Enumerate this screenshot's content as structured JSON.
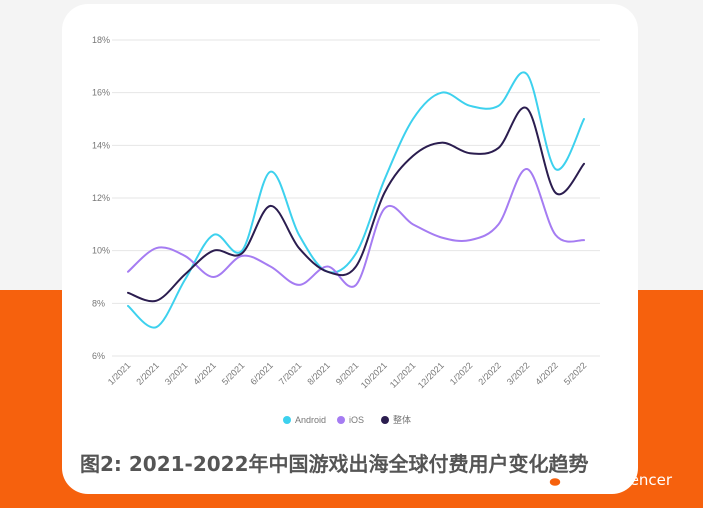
{
  "colors": {
    "background_top": "#f4f4f4",
    "background_bottom": "#f6610d",
    "card": "#ffffff",
    "grid": "#e6e6e6",
    "axis_text": "#777777",
    "caption_text": "#555555"
  },
  "caption": "图2: 2021-2022年中国游戏出海全球付费用户变化趋势",
  "watermark": {
    "icon": "wechat-icon",
    "text": "NoxInfluencer"
  },
  "chart_data": {
    "type": "line",
    "x": [
      "1/2021",
      "2/2021",
      "3/2021",
      "4/2021",
      "5/2021",
      "6/2021",
      "7/2021",
      "8/2021",
      "9/2021",
      "10/2021",
      "11/2021",
      "12/2021",
      "1/2022",
      "2/2022",
      "3/2022",
      "4/2022",
      "5/2022"
    ],
    "y_ticks": [
      "18%",
      "16%",
      "14%",
      "12%",
      "10%",
      "8%",
      "6%"
    ],
    "ylim": [
      6,
      18
    ],
    "grid": true,
    "legend_position": "bottom-center",
    "series": [
      {
        "name": "Android",
        "color": "#3dd1ee",
        "values": [
          7.9,
          7.1,
          8.9,
          10.6,
          10.0,
          13.0,
          10.6,
          9.2,
          9.9,
          12.7,
          15.0,
          16.0,
          15.5,
          15.5,
          16.7,
          13.1,
          15.0
        ]
      },
      {
        "name": "iOS",
        "color": "#a57cf2",
        "values": [
          9.2,
          10.1,
          9.8,
          9.0,
          9.8,
          9.4,
          8.7,
          9.4,
          8.7,
          11.6,
          11.0,
          10.5,
          10.4,
          11.0,
          13.1,
          10.6,
          10.4
        ]
      },
      {
        "name": "整体",
        "color": "#2b1d4f",
        "values": [
          8.4,
          8.1,
          9.1,
          10.0,
          9.9,
          11.7,
          10.1,
          9.2,
          9.4,
          12.2,
          13.6,
          14.1,
          13.7,
          13.9,
          15.4,
          12.2,
          13.3
        ]
      }
    ]
  }
}
